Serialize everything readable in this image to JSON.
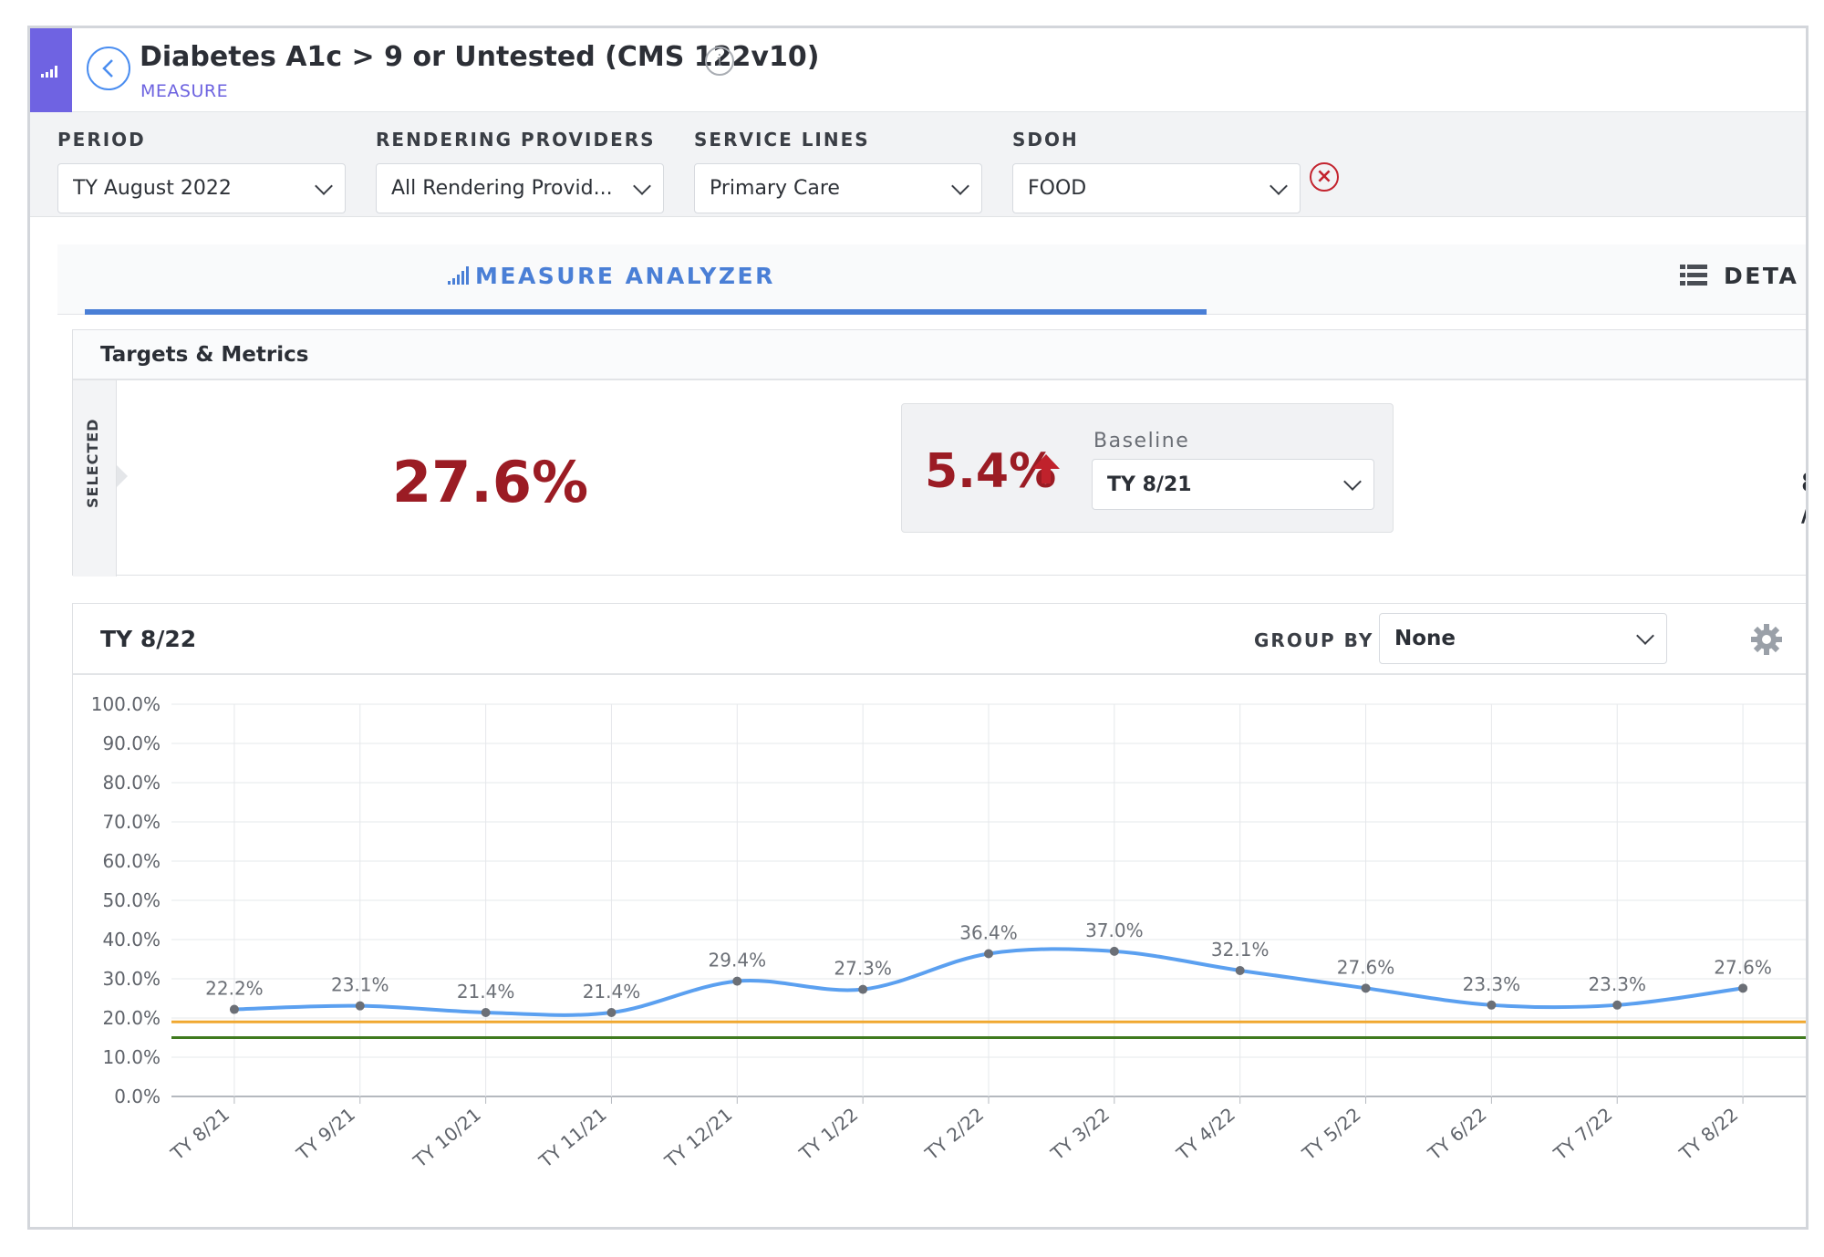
{
  "header": {
    "title": "Diabetes A1c > 9 or Untested (CMS 122v10)",
    "subtitle": "MEASURE",
    "info_icon": "i"
  },
  "filters": [
    {
      "label": "PERIOD",
      "value": "TY August 2022"
    },
    {
      "label": "RENDERING PROVIDERS",
      "value": "All Rendering Provid..."
    },
    {
      "label": "SERVICE LINES",
      "value": "Primary Care"
    },
    {
      "label": "SDOH",
      "value": "FOOD"
    }
  ],
  "tabs": {
    "analyzer": "MEASURE ANALYZER",
    "details": "DETA"
  },
  "targets": {
    "heading": "Targets & Metrics",
    "selected_label": "SELECTED",
    "value": "27.6%",
    "change": "5.4%",
    "baseline_label": "Baseline",
    "baseline_value": "TY 8/21",
    "extra_value": "8 /"
  },
  "chart_panel": {
    "title": "TY 8/22",
    "group_by_label": "GROUP BY",
    "group_by_value": "None"
  },
  "colors": {
    "accent": "#4a7fd6",
    "brand_purple": "#6f63e2",
    "negative": "#9b1c24",
    "series": "#5ba0f0",
    "target_orange": "#f0a830",
    "target_green": "#3f7a1e"
  },
  "chart_data": {
    "type": "line",
    "categories": [
      "TY 8/21",
      "TY 9/21",
      "TY 10/21",
      "TY 11/21",
      "TY 12/21",
      "TY 1/22",
      "TY 2/22",
      "TY 3/22",
      "TY 4/22",
      "TY 5/22",
      "TY 6/22",
      "TY 7/22",
      "TY 8/22"
    ],
    "series": [
      {
        "values": [
          22.2,
          23.1,
          21.4,
          21.4,
          29.4,
          27.3,
          36.4,
          37.0,
          32.1,
          27.6,
          23.3,
          23.3,
          27.6
        ]
      }
    ],
    "data_labels": [
      "22.2%",
      "23.1%",
      "21.4%",
      "21.4%",
      "29.4%",
      "27.3%",
      "36.4%",
      "37.0%",
      "32.1%",
      "27.6%",
      "23.3%",
      "23.3%",
      "27.6%"
    ],
    "reference_lines": [
      {
        "value": 19.0,
        "color": "#f0a830"
      },
      {
        "value": 15.0,
        "color": "#3f7a1e"
      }
    ],
    "y_ticks": [
      "0.0%",
      "10.0%",
      "20.0%",
      "30.0%",
      "40.0%",
      "50.0%",
      "60.0%",
      "70.0%",
      "80.0%",
      "90.0%",
      "100.0%"
    ],
    "ylim": [
      0,
      100
    ],
    "grid": true
  }
}
